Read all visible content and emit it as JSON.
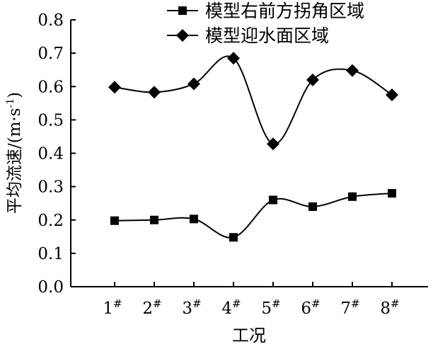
{
  "chart_data": {
    "type": "line",
    "categories": [
      "1",
      "2",
      "3",
      "4",
      "5",
      "6",
      "7",
      "8"
    ],
    "category_superscript": "#",
    "xlabel": "工况",
    "ylabel": "平均流速/(m·s",
    "ylabel_superscript": "-1",
    "ylabel_suffix": ")",
    "ylim": [
      0.0,
      0.8
    ],
    "yticks": [
      "0.0",
      "0.1",
      "0.2",
      "0.3",
      "0.4",
      "0.5",
      "0.6",
      "0.7",
      "0.8"
    ],
    "grid": false,
    "smooth": true,
    "legend_position": "top-right",
    "series": [
      {
        "name": "模型右前方拐角区域",
        "marker": "square",
        "color": "#000000",
        "values": [
          0.198,
          0.2,
          0.203,
          0.148,
          0.26,
          0.24,
          0.27,
          0.28
        ]
      },
      {
        "name": "模型迎水面区域",
        "marker": "diamond",
        "color": "#000000",
        "values": [
          0.598,
          0.583,
          0.608,
          0.685,
          0.428,
          0.62,
          0.648,
          0.575
        ]
      }
    ]
  }
}
